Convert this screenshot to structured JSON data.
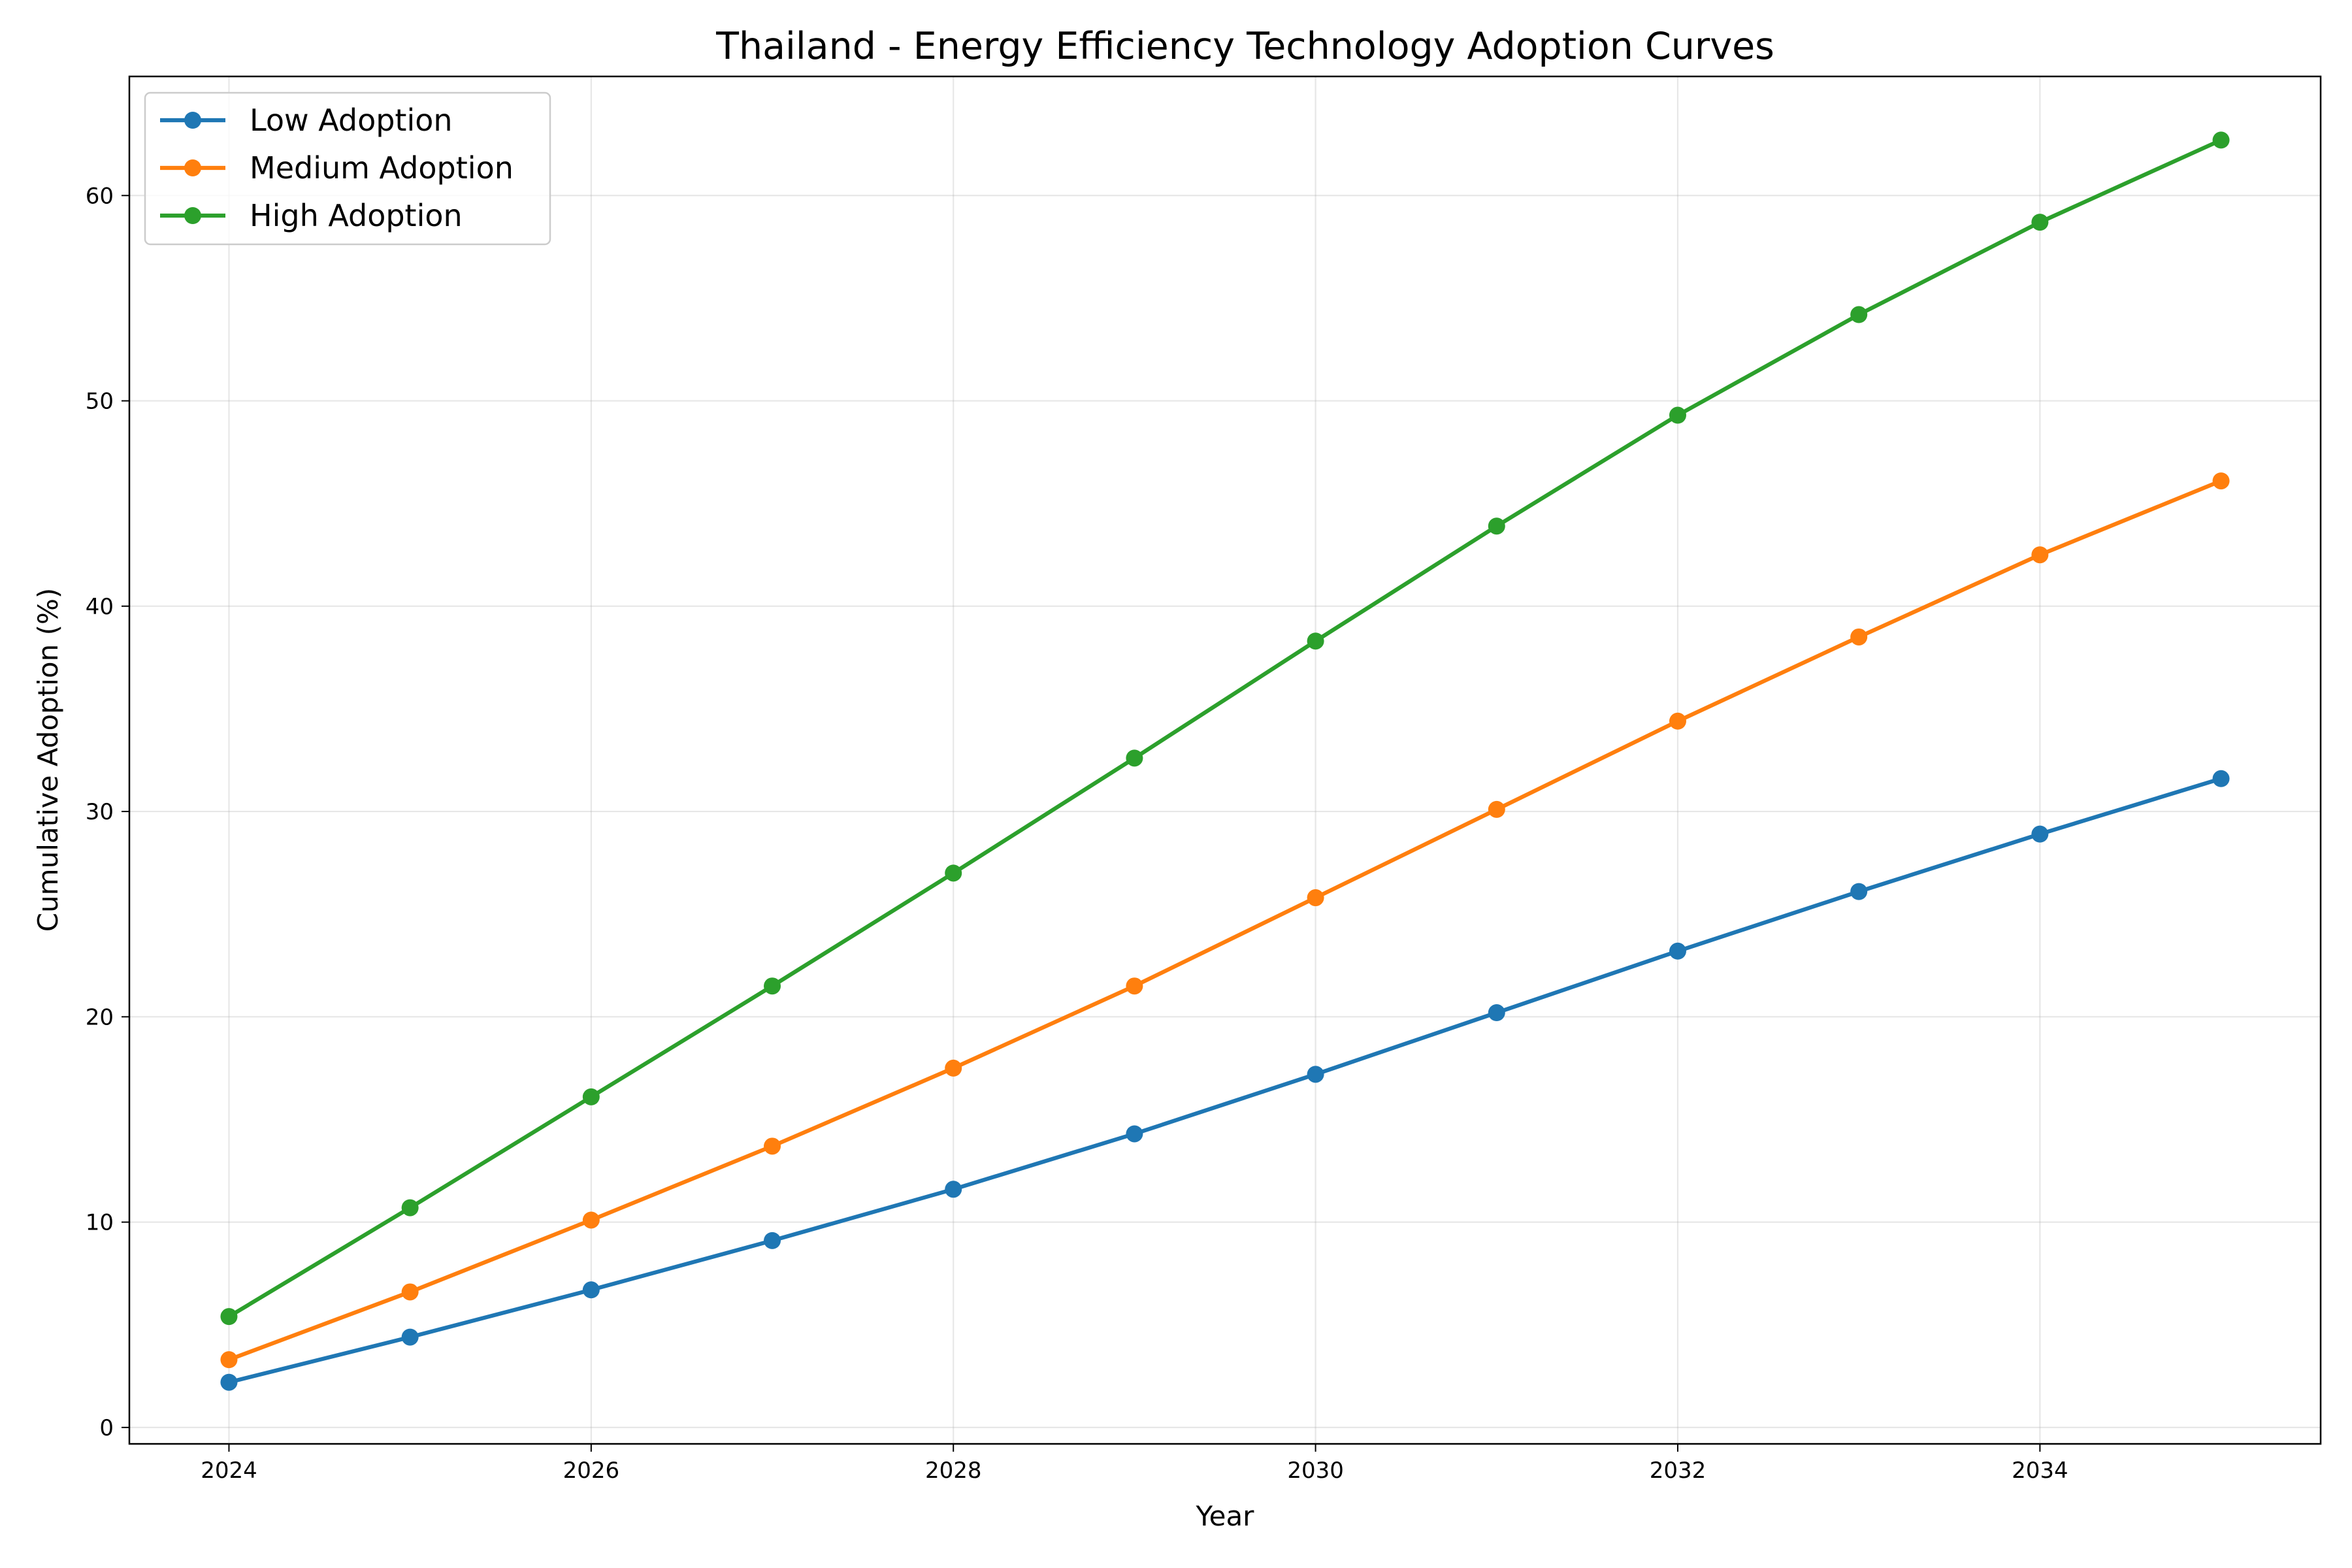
{
  "chart_data": {
    "type": "line",
    "title": "Thailand - Energy Efficiency Technology Adoption Curves",
    "xlabel": "Year",
    "ylabel": "Cumulative Adoption (%)",
    "x": [
      2024,
      2025,
      2026,
      2027,
      2028,
      2029,
      2030,
      2031,
      2032,
      2033,
      2034,
      2035
    ],
    "xlim": [
      2023.45,
      2035.55
    ],
    "ylim": [
      -0.8,
      65.8
    ],
    "xticks": [
      2024,
      2026,
      2028,
      2030,
      2032,
      2034
    ],
    "yticks": [
      0,
      10,
      20,
      30,
      40,
      50,
      60
    ],
    "grid": true,
    "legend_position": "top-left",
    "series": [
      {
        "name": "Low Adoption",
        "color": "#1f77b4",
        "values": [
          2.2,
          4.4,
          6.7,
          9.1,
          11.6,
          14.3,
          17.2,
          20.2,
          23.2,
          26.1,
          28.9,
          31.6
        ]
      },
      {
        "name": "Medium Adoption",
        "color": "#ff7f0e",
        "values": [
          3.3,
          6.6,
          10.1,
          13.7,
          17.5,
          21.5,
          25.8,
          30.1,
          34.4,
          38.5,
          42.5,
          46.1
        ]
      },
      {
        "name": "High Adoption",
        "color": "#2ca02c",
        "values": [
          5.4,
          10.7,
          16.1,
          21.5,
          27.0,
          32.6,
          38.3,
          43.9,
          49.3,
          54.2,
          58.7,
          62.7
        ]
      }
    ]
  }
}
